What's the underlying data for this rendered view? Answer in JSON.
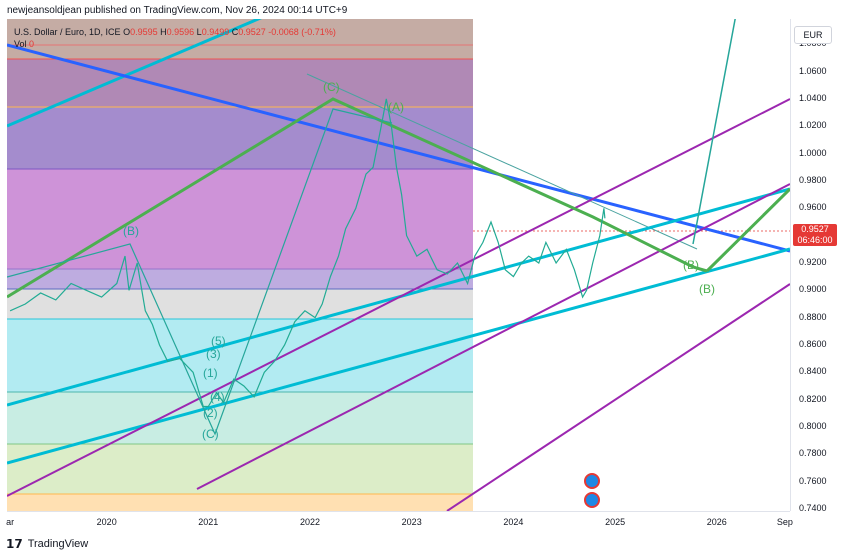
{
  "header": {
    "publisher_line": "newjeansoldjean published on TradingView.com, Nov 26, 2024 00:14 UTC+9"
  },
  "legend": {
    "symbol": "U.S. Dollar / Euro, 1D, ICE",
    "o_label": "O",
    "o_value": "0.9595",
    "h_label": "H",
    "h_value": "0.9596",
    "l_label": "L",
    "l_value": "0.9499",
    "c_label": "C",
    "c_value": "0.9527",
    "change": "-0.0068 (-0.71%)",
    "vol_label": "Vol",
    "vol_value": "0"
  },
  "currency_button": "EUR",
  "price_tag": {
    "price": "0.9527",
    "countdown": "06:46:00"
  },
  "footer": {
    "brand": "TradingView"
  },
  "wave_labels": {
    "c_top": "(C)",
    "a_top": "(A)",
    "b_2020": "(B)",
    "w5": "(5)",
    "w3": "(3)",
    "w1": "(1)",
    "w4": "(4)",
    "w2": "(2)",
    "c_bottom": "(C)",
    "b_fore1": "(B)",
    "b_fore2": "(B)"
  },
  "chart_data": {
    "type": "line",
    "symbol": "USDEUR",
    "y_ticks": [
      "1.0800",
      "1.0600",
      "1.0400",
      "1.0200",
      "1.0000",
      "0.9800",
      "0.9600",
      "0.9400",
      "0.9200",
      "0.9000",
      "0.8800",
      "0.8600",
      "0.8400",
      "0.8200",
      "0.8000",
      "0.7800",
      "0.7600",
      "0.7400"
    ],
    "x_ticks": [
      "ar",
      "2020",
      "2021",
      "2022",
      "2023",
      "2024",
      "2025",
      "2026",
      "Sep"
    ],
    "ylim": [
      0.7385,
      1.0985
    ],
    "xlim": [
      2019.02,
      2026.72
    ],
    "colors": {
      "price": "#22ab94",
      "blue_line": "#2962ff",
      "cyan_line": "#00bcd4",
      "purple_line": "#9c27b0",
      "green_path": "#4caf50",
      "accent_red": "#e53935"
    },
    "series": [
      {
        "values": [
          [
            2019.05,
            0.885
          ],
          [
            2019.2,
            0.89
          ],
          [
            2019.35,
            0.898
          ],
          [
            2019.5,
            0.893
          ],
          [
            2019.65,
            0.905
          ],
          [
            2019.8,
            0.9
          ],
          [
            2019.95,
            0.895
          ],
          [
            2020.1,
            0.905
          ],
          [
            2020.18,
            0.925
          ],
          [
            2020.22,
            0.9
          ],
          [
            2020.3,
            0.92
          ],
          [
            2020.38,
            0.885
          ],
          [
            2020.45,
            0.875
          ],
          [
            2020.52,
            0.86
          ],
          [
            2020.6,
            0.848
          ],
          [
            2020.72,
            0.85
          ],
          [
            2020.85,
            0.84
          ],
          [
            2020.95,
            0.815
          ],
          [
            2021.0,
            0.815
          ],
          [
            2021.08,
            0.825
          ],
          [
            2021.15,
            0.818
          ],
          [
            2021.25,
            0.835
          ],
          [
            2021.35,
            0.83
          ],
          [
            2021.45,
            0.822
          ],
          [
            2021.55,
            0.84
          ],
          [
            2021.65,
            0.848
          ],
          [
            2021.75,
            0.86
          ],
          [
            2021.85,
            0.877
          ],
          [
            2021.95,
            0.885
          ],
          [
            2022.05,
            0.88
          ],
          [
            2022.12,
            0.89
          ],
          [
            2022.2,
            0.91
          ],
          [
            2022.28,
            0.925
          ],
          [
            2022.35,
            0.945
          ],
          [
            2022.45,
            0.96
          ],
          [
            2022.55,
            0.985
          ],
          [
            2022.62,
            0.99
          ],
          [
            2022.7,
            1.02
          ],
          [
            2022.75,
            1.04
          ],
          [
            2022.8,
            1.02
          ],
          [
            2022.85,
            0.99
          ],
          [
            2022.9,
            0.97
          ],
          [
            2022.95,
            0.94
          ],
          [
            2023.05,
            0.925
          ],
          [
            2023.15,
            0.93
          ],
          [
            2023.25,
            0.915
          ],
          [
            2023.35,
            0.912
          ],
          [
            2023.45,
            0.92
          ],
          [
            2023.55,
            0.905
          ],
          [
            2023.62,
            0.925
          ],
          [
            2023.7,
            0.935
          ],
          [
            2023.78,
            0.95
          ],
          [
            2023.85,
            0.935
          ],
          [
            2023.92,
            0.915
          ],
          [
            2024.0,
            0.91
          ],
          [
            2024.08,
            0.92
          ],
          [
            2024.15,
            0.925
          ],
          [
            2024.25,
            0.92
          ],
          [
            2024.32,
            0.935
          ],
          [
            2024.42,
            0.92
          ],
          [
            2024.52,
            0.93
          ],
          [
            2024.6,
            0.915
          ],
          [
            2024.68,
            0.895
          ],
          [
            2024.72,
            0.9
          ],
          [
            2024.78,
            0.92
          ],
          [
            2024.85,
            0.94
          ],
          [
            2024.89,
            0.96
          ],
          [
            2024.9,
            0.9527
          ]
        ]
      }
    ]
  }
}
